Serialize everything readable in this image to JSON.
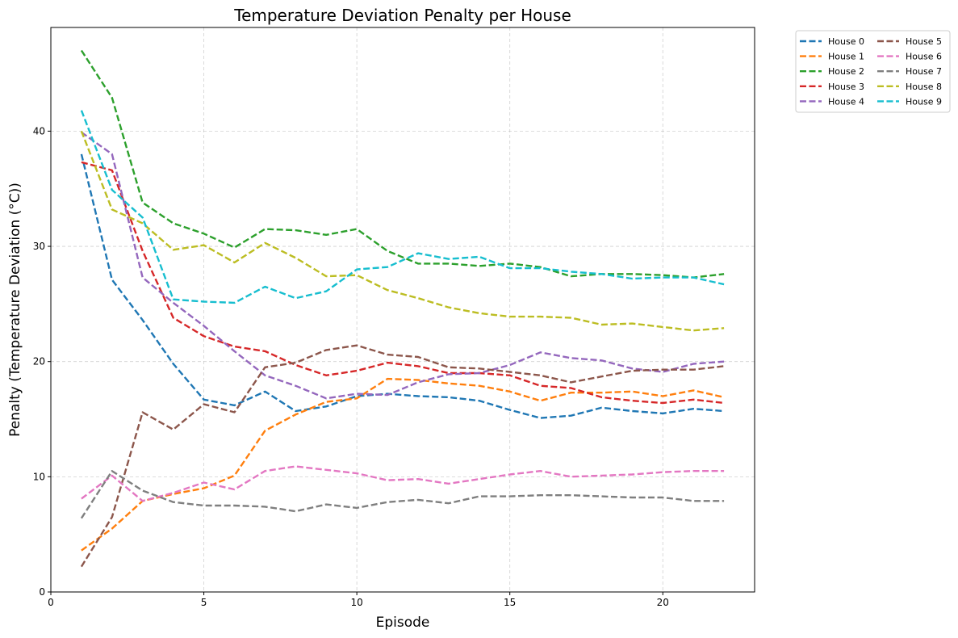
{
  "chart_data": {
    "type": "line",
    "title": "Temperature Deviation Penalty per House",
    "xlabel": "Episode",
    "ylabel": "Penalty (Temperature Deviation (°C))",
    "xlim": [
      0,
      23
    ],
    "ylim": [
      0,
      49
    ],
    "xticks": [
      0,
      5,
      10,
      15,
      20
    ],
    "yticks": [
      0,
      10,
      20,
      30,
      40
    ],
    "grid": true,
    "line_style": "dashed",
    "legend_position": "outside-top-right",
    "legend_columns": 2,
    "x": [
      1,
      2,
      3,
      4,
      5,
      6,
      7,
      8,
      9,
      10,
      11,
      12,
      13,
      14,
      15,
      16,
      17,
      18,
      19,
      20,
      21,
      22
    ],
    "series": [
      {
        "name": "House 0",
        "color": "#1f77b4",
        "values": [
          38.0,
          27.1,
          23.6,
          19.8,
          16.7,
          16.2,
          17.4,
          15.7,
          16.1,
          17.0,
          17.2,
          17.0,
          16.9,
          16.6,
          15.8,
          15.1,
          15.3,
          16.0,
          15.7,
          15.5,
          15.9,
          15.7
        ]
      },
      {
        "name": "House 1",
        "color": "#ff7f0e",
        "values": [
          3.6,
          5.5,
          7.9,
          8.5,
          9.0,
          10.1,
          14.0,
          15.4,
          16.5,
          16.8,
          18.5,
          18.4,
          18.1,
          17.9,
          17.4,
          16.6,
          17.3,
          17.3,
          17.4,
          17.0,
          17.5,
          16.9
        ]
      },
      {
        "name": "House 2",
        "color": "#2ca02c",
        "values": [
          47.0,
          42.9,
          33.8,
          32.0,
          31.1,
          29.9,
          31.5,
          31.4,
          31.0,
          31.5,
          29.6,
          28.5,
          28.5,
          28.3,
          28.5,
          28.2,
          27.4,
          27.6,
          27.6,
          27.5,
          27.3,
          27.6
        ]
      },
      {
        "name": "House 3",
        "color": "#d62728",
        "values": [
          37.3,
          36.6,
          29.6,
          23.8,
          22.2,
          21.3,
          20.9,
          19.7,
          18.8,
          19.2,
          19.9,
          19.6,
          19.0,
          19.0,
          18.8,
          17.9,
          17.7,
          16.9,
          16.6,
          16.4,
          16.7,
          16.4
        ]
      },
      {
        "name": "House 4",
        "color": "#9467bd",
        "values": [
          39.9,
          38.0,
          27.3,
          25.1,
          23.1,
          20.9,
          18.8,
          17.9,
          16.8,
          17.2,
          17.1,
          18.2,
          18.9,
          19.0,
          19.7,
          20.8,
          20.3,
          20.1,
          19.4,
          19.1,
          19.8,
          20.0
        ]
      },
      {
        "name": "House 5",
        "color": "#8c564b",
        "values": [
          2.2,
          6.5,
          15.6,
          14.1,
          16.3,
          15.6,
          19.5,
          19.9,
          21.0,
          21.4,
          20.6,
          20.4,
          19.5,
          19.4,
          19.1,
          18.8,
          18.2,
          18.7,
          19.2,
          19.3,
          19.3,
          19.6
        ]
      },
      {
        "name": "House 6",
        "color": "#e377c2",
        "values": [
          8.1,
          10.1,
          7.9,
          8.6,
          9.5,
          8.9,
          10.5,
          10.9,
          10.6,
          10.3,
          9.7,
          9.8,
          9.4,
          9.8,
          10.2,
          10.5,
          10.0,
          10.1,
          10.2,
          10.4,
          10.5,
          10.5
        ]
      },
      {
        "name": "House 7",
        "color": "#7f7f7f",
        "values": [
          6.4,
          10.5,
          8.8,
          7.8,
          7.5,
          7.5,
          7.4,
          7.0,
          7.6,
          7.3,
          7.8,
          8.0,
          7.7,
          8.3,
          8.3,
          8.4,
          8.4,
          8.3,
          8.2,
          8.2,
          7.9,
          7.9
        ]
      },
      {
        "name": "House 8",
        "color": "#bcbd22",
        "values": [
          40.0,
          33.2,
          32.0,
          29.7,
          30.1,
          28.6,
          30.3,
          29.0,
          27.4,
          27.5,
          26.2,
          25.5,
          24.7,
          24.2,
          23.9,
          23.9,
          23.8,
          23.2,
          23.3,
          23.0,
          22.7,
          22.9
        ]
      },
      {
        "name": "House 9",
        "color": "#17becf",
        "values": [
          41.8,
          34.9,
          32.5,
          25.4,
          25.2,
          25.1,
          26.5,
          25.5,
          26.1,
          28.0,
          28.2,
          29.4,
          28.9,
          29.1,
          28.1,
          28.1,
          27.8,
          27.6,
          27.2,
          27.3,
          27.3,
          26.7
        ]
      }
    ]
  }
}
